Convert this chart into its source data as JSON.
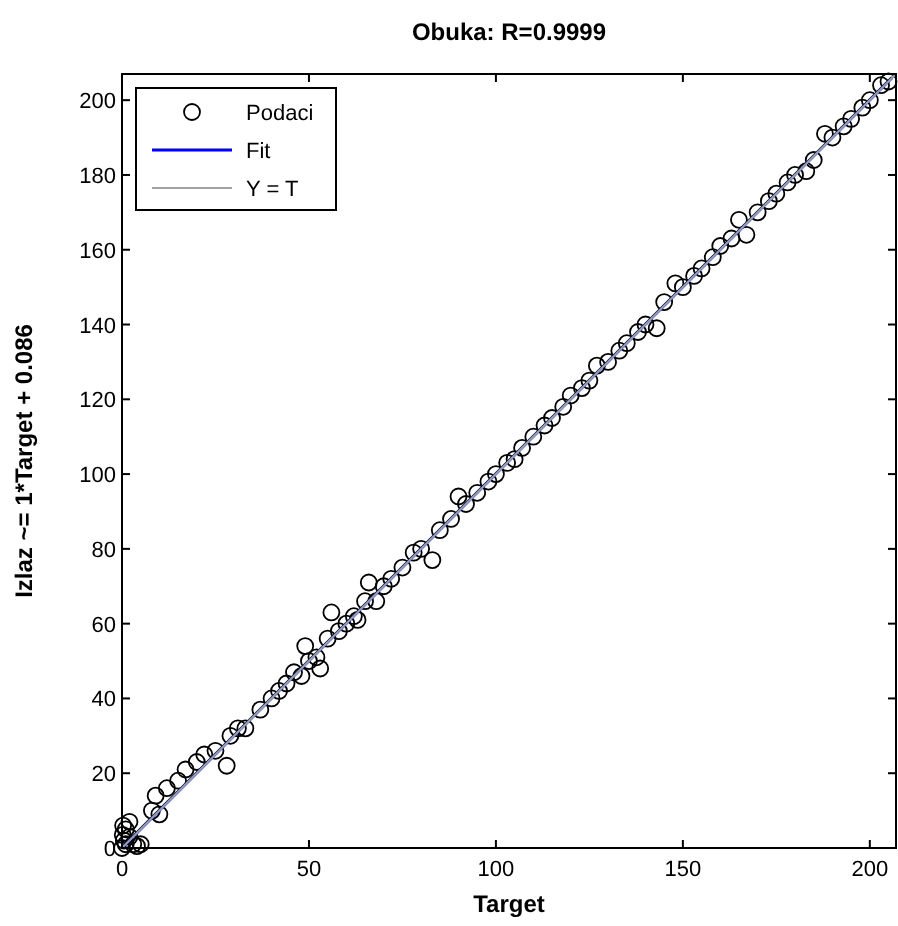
{
  "chart_data": {
    "type": "scatter",
    "title": "Obuka: R=0.9999",
    "xlabel": "Target",
    "ylabel": "Izlaz ~= 1*Target + 0.086",
    "xlim": [
      0,
      207
    ],
    "ylim": [
      0,
      207
    ],
    "xticks": [
      0,
      50,
      100,
      150,
      200
    ],
    "yticks": [
      0,
      20,
      40,
      60,
      80,
      100,
      120,
      140,
      160,
      180,
      200
    ],
    "grid": false,
    "legend": "top left",
    "series": [
      {
        "name": "Podaci",
        "color": "#000000",
        "marker": "circle",
        "x": [
          0,
          0.5,
          1,
          0.3,
          2,
          1,
          3,
          4,
          5,
          2,
          0.2,
          8,
          9,
          10,
          12,
          15,
          17,
          20,
          22,
          25,
          28,
          29,
          31,
          33,
          37,
          40,
          42,
          44,
          46,
          48,
          49,
          50,
          52,
          53,
          55,
          56,
          58,
          60,
          62,
          63,
          65,
          66,
          68,
          70,
          72,
          75,
          78,
          80,
          83,
          85,
          88,
          90,
          92,
          95,
          98,
          100,
          103,
          105,
          107,
          110,
          113,
          115,
          118,
          120,
          123,
          125,
          127,
          130,
          133,
          135,
          138,
          140,
          143,
          145,
          148,
          150,
          153,
          155,
          158,
          160,
          163,
          165,
          167,
          170,
          173,
          175,
          178,
          180,
          183,
          185,
          188,
          190,
          193,
          195,
          198,
          200,
          203,
          205
        ],
        "values": [
          0,
          2,
          5,
          6,
          7,
          1,
          1,
          0.5,
          1,
          3,
          3.5,
          10,
          14,
          9,
          16,
          18,
          21,
          23,
          25,
          26,
          22,
          30,
          32,
          32,
          37,
          40,
          42,
          44,
          47,
          46,
          54,
          50,
          51,
          48,
          56,
          63,
          58,
          60,
          62,
          61,
          66,
          71,
          66,
          70,
          72,
          75,
          79,
          80,
          77,
          85,
          88,
          94,
          92,
          95,
          98,
          100,
          103,
          104,
          107,
          110,
          113,
          115,
          118,
          121,
          123,
          125,
          129,
          130,
          133,
          135,
          138,
          140,
          139,
          146,
          151,
          150,
          153,
          155,
          158,
          161,
          163,
          168,
          164,
          170,
          173,
          175,
          178,
          180,
          181,
          184,
          191,
          190,
          193,
          195,
          198,
          200,
          204,
          205
        ]
      },
      {
        "name": "Fit",
        "type": "line",
        "color": "#0000ff",
        "line_style": "solid",
        "marker": "none",
        "x": [
          0,
          206
        ],
        "values": [
          0.1,
          206.1
        ]
      },
      {
        "name": "Y = T",
        "type": "line",
        "color": "#a0a0a0",
        "line_style": "solid",
        "marker": "none",
        "x": [
          0,
          207
        ],
        "values": [
          0,
          207
        ]
      }
    ]
  }
}
